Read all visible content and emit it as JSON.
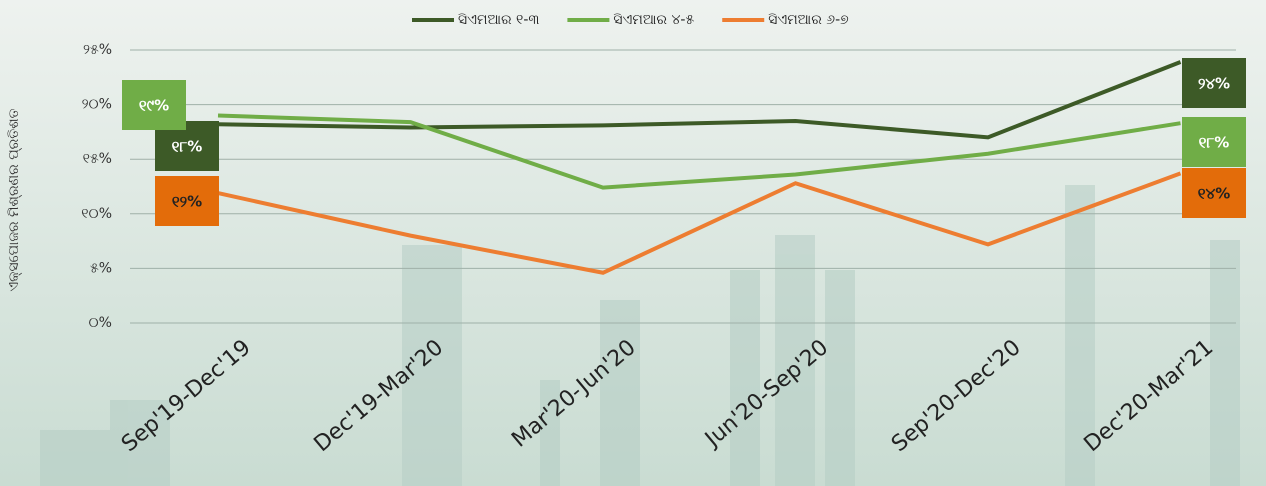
{
  "chart_data": {
    "type": "line",
    "y_label": "ଏକ୍ସପୋଜର ମିଶ୍ରଣର ପ୍ରତିଶତ",
    "categories": [
      "Sep'19-Dec'19",
      "Dec'19-Mar'20",
      "Mar'20-Jun'20",
      "Jun'20-Sep'20",
      "Sep'20-Dec'20",
      "Dec'20-Mar'21"
    ],
    "series": [
      {
        "name": "ସିଏମଆର ୧-୩",
        "color": "#3d5a27",
        "values": [
          18.2,
          17.9,
          18.1,
          18.5,
          17.0,
          23.9
        ],
        "value_labels": [
          "୧୮%",
          null,
          null,
          null,
          null,
          "୨୪%"
        ]
      },
      {
        "name": "ସିଏମଆର ୪-୫",
        "color": "#70ad47",
        "values": [
          19.0,
          18.4,
          12.4,
          13.6,
          15.5,
          18.3
        ],
        "value_labels": [
          "୧୯%",
          null,
          null,
          null,
          null,
          "୧୮%"
        ]
      },
      {
        "name": "ସିଏମଆର ୬-୭",
        "color": "#ed7d31",
        "values": [
          11.9,
          8.0,
          4.6,
          12.8,
          7.2,
          13.7
        ],
        "value_labels": [
          "୧୨%",
          null,
          null,
          null,
          null,
          "୧୪%"
        ]
      }
    ],
    "ylim": [
      0,
      25
    ],
    "yticks": [
      {
        "value": 0,
        "label": "୦%"
      },
      {
        "value": 5,
        "label": "୫%"
      },
      {
        "value": 10,
        "label": "୧୦%"
      },
      {
        "value": 15,
        "label": "୧୫%"
      },
      {
        "value": 20,
        "label": "୨୦%"
      },
      {
        "value": 25,
        "label": "୨୫%"
      }
    ],
    "grid": true
  }
}
